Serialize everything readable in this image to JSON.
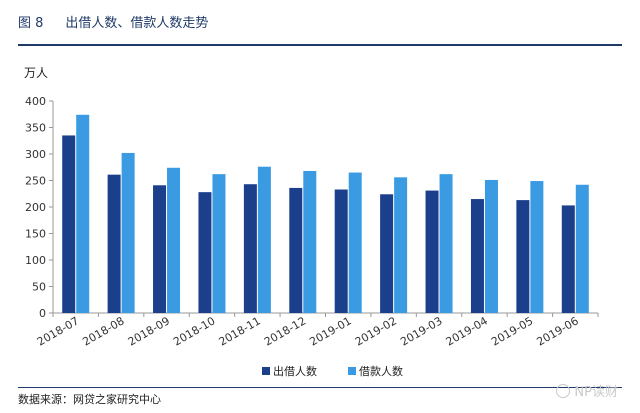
{
  "header": {
    "figure_number": "图 8",
    "title": "出借人数、借款人数走势"
  },
  "colors": {
    "lenders": "#1b3f8b",
    "borrowers": "#3a9be3",
    "rule": "#1f3a68"
  },
  "chart_data": {
    "type": "bar",
    "title": "出借人数、借款人数走势",
    "ylabel": "万人",
    "xlabel": "",
    "ylim": [
      0,
      400
    ],
    "yticks": [
      0,
      50,
      100,
      150,
      200,
      250,
      300,
      350,
      400
    ],
    "grid": false,
    "legend_position": "bottom-center",
    "categories": [
      "2018-07",
      "2018-08",
      "2018-09",
      "2018-10",
      "2018-11",
      "2018-12",
      "2019-01",
      "2019-02",
      "2019-03",
      "2019-04",
      "2019-05",
      "2019-06"
    ],
    "series": [
      {
        "name": "出借人数",
        "values": [
          335,
          261,
          241,
          228,
          243,
          236,
          233,
          224,
          231,
          215,
          213,
          203
        ]
      },
      {
        "name": "借款人数",
        "values": [
          374,
          302,
          274,
          262,
          276,
          268,
          265,
          256,
          262,
          251,
          249,
          242
        ]
      }
    ]
  },
  "footer": {
    "source": "数据来源：网贷之家研究中心",
    "watermark": "NP读财"
  }
}
